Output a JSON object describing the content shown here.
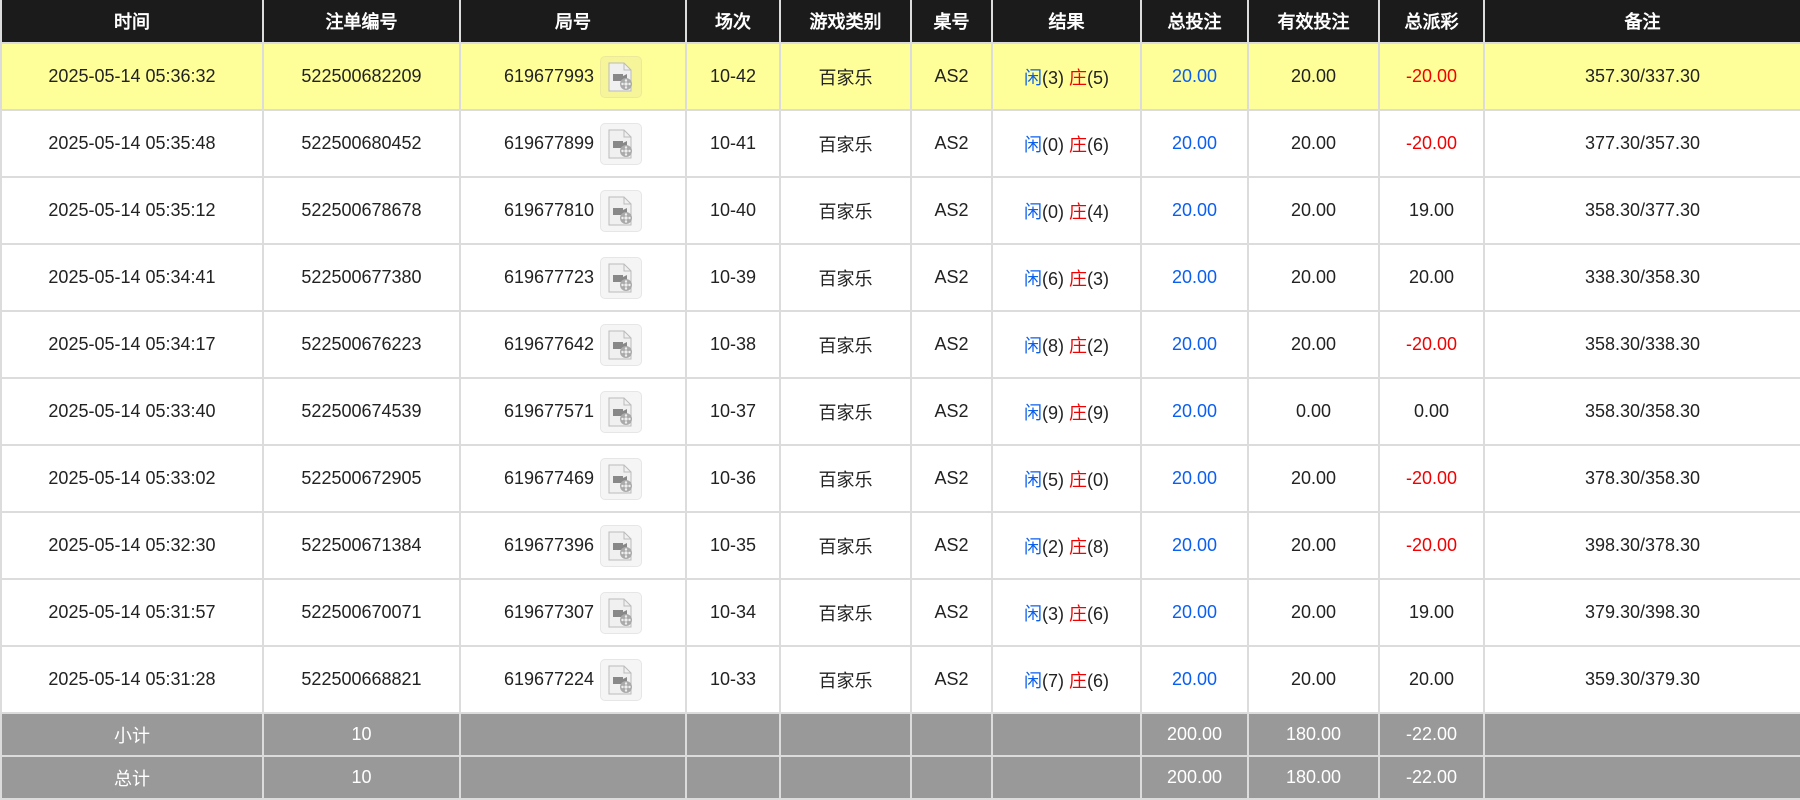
{
  "headers": [
    "时间",
    "注单编号",
    "局号",
    "场次",
    "游戏类别",
    "桌号",
    "结果",
    "总投注",
    "有效投注",
    "总派彩",
    "备注"
  ],
  "colors": {
    "header_bg": "#1b1b1b",
    "highlight_row": "#ffff99",
    "summary_bg": "#999999",
    "player": "#0a5ff0",
    "banker": "#f00000"
  },
  "rows": [
    {
      "time": "2025-05-14 05:36:32",
      "order": "522500682209",
      "round": "619677993",
      "shoe": "10-42",
      "game": "百家乐",
      "table": "AS2",
      "player_label": "闲",
      "player": "(3)",
      "banker_label": "庄",
      "banker": "(5)",
      "bet": "20.00",
      "valid": "20.00",
      "payout": "-20.00",
      "note": "357.30/337.30"
    },
    {
      "time": "2025-05-14 05:35:48",
      "order": "522500680452",
      "round": "619677899",
      "shoe": "10-41",
      "game": "百家乐",
      "table": "AS2",
      "player_label": "闲",
      "player": "(0)",
      "banker_label": "庄",
      "banker": "(6)",
      "bet": "20.00",
      "valid": "20.00",
      "payout": "-20.00",
      "note": "377.30/357.30"
    },
    {
      "time": "2025-05-14 05:35:12",
      "order": "522500678678",
      "round": "619677810",
      "shoe": "10-40",
      "game": "百家乐",
      "table": "AS2",
      "player_label": "闲",
      "player": "(0)",
      "banker_label": "庄",
      "banker": "(4)",
      "bet": "20.00",
      "valid": "20.00",
      "payout": "19.00",
      "note": "358.30/377.30"
    },
    {
      "time": "2025-05-14 05:34:41",
      "order": "522500677380",
      "round": "619677723",
      "shoe": "10-39",
      "game": "百家乐",
      "table": "AS2",
      "player_label": "闲",
      "player": "(6)",
      "banker_label": "庄",
      "banker": "(3)",
      "bet": "20.00",
      "valid": "20.00",
      "payout": "20.00",
      "note": "338.30/358.30"
    },
    {
      "time": "2025-05-14 05:34:17",
      "order": "522500676223",
      "round": "619677642",
      "shoe": "10-38",
      "game": "百家乐",
      "table": "AS2",
      "player_label": "闲",
      "player": "(8)",
      "banker_label": "庄",
      "banker": "(2)",
      "bet": "20.00",
      "valid": "20.00",
      "payout": "-20.00",
      "note": "358.30/338.30"
    },
    {
      "time": "2025-05-14 05:33:40",
      "order": "522500674539",
      "round": "619677571",
      "shoe": "10-37",
      "game": "百家乐",
      "table": "AS2",
      "player_label": "闲",
      "player": "(9)",
      "banker_label": "庄",
      "banker": "(9)",
      "bet": "20.00",
      "valid": "0.00",
      "payout": "0.00",
      "note": "358.30/358.30"
    },
    {
      "time": "2025-05-14 05:33:02",
      "order": "522500672905",
      "round": "619677469",
      "shoe": "10-36",
      "game": "百家乐",
      "table": "AS2",
      "player_label": "闲",
      "player": "(5)",
      "banker_label": "庄",
      "banker": "(0)",
      "bet": "20.00",
      "valid": "20.00",
      "payout": "-20.00",
      "note": "378.30/358.30"
    },
    {
      "time": "2025-05-14 05:32:30",
      "order": "522500671384",
      "round": "619677396",
      "shoe": "10-35",
      "game": "百家乐",
      "table": "AS2",
      "player_label": "闲",
      "player": "(2)",
      "banker_label": "庄",
      "banker": "(8)",
      "bet": "20.00",
      "valid": "20.00",
      "payout": "-20.00",
      "note": "398.30/378.30"
    },
    {
      "time": "2025-05-14 05:31:57",
      "order": "522500670071",
      "round": "619677307",
      "shoe": "10-34",
      "game": "百家乐",
      "table": "AS2",
      "player_label": "闲",
      "player": "(3)",
      "banker_label": "庄",
      "banker": "(6)",
      "bet": "20.00",
      "valid": "20.00",
      "payout": "19.00",
      "note": "379.30/398.30"
    },
    {
      "time": "2025-05-14 05:31:28",
      "order": "522500668821",
      "round": "619677224",
      "shoe": "10-33",
      "game": "百家乐",
      "table": "AS2",
      "player_label": "闲",
      "player": "(7)",
      "banker_label": "庄",
      "banker": "(6)",
      "bet": "20.00",
      "valid": "20.00",
      "payout": "20.00",
      "note": "359.30/379.30"
    }
  ],
  "summary": [
    {
      "label": "小计",
      "count": "10",
      "bet": "200.00",
      "valid": "180.00",
      "payout": "-22.00"
    },
    {
      "label": "总计",
      "count": "10",
      "bet": "200.00",
      "valid": "180.00",
      "payout": "-22.00"
    }
  ]
}
